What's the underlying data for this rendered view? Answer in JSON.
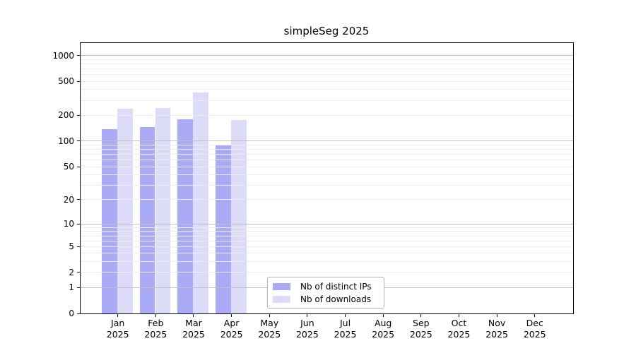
{
  "page": {
    "background": "#ffffff"
  },
  "chart_data": {
    "type": "bar",
    "title": "simpleSeg 2025",
    "xlabel": "",
    "ylabel": "",
    "categories": [
      "Jan",
      "Feb",
      "Mar",
      "Apr",
      "May",
      "Jun",
      "Jul",
      "Aug",
      "Sep",
      "Oct",
      "Nov",
      "Dec"
    ],
    "x_tick_year": "2025",
    "series": [
      {
        "key": "distinct-ips",
        "name": "Nb of distinct IPs",
        "color": "#aaaaf6",
        "values": [
          138,
          145,
          181,
          90,
          null,
          null,
          null,
          null,
          null,
          null,
          null,
          null
        ]
      },
      {
        "key": "downloads",
        "name": "Nb of downloads",
        "color": "#dcdcf8",
        "values": [
          238,
          243,
          369,
          176,
          null,
          null,
          null,
          null,
          null,
          null,
          null,
          null
        ]
      }
    ],
    "yscale": "log10(1+x)",
    "y_ticks": [
      0,
      1,
      2,
      5,
      10,
      20,
      50,
      100,
      200,
      500,
      1000
    ],
    "ylim": [
      0,
      1400
    ],
    "grid": "both",
    "legend_position": "bottom-center-inside",
    "colors": {
      "axis": "#000000",
      "major_grid": "#c2c2c2",
      "minor_grid": "#ececec",
      "legend_border": "#b0b0b0"
    }
  }
}
